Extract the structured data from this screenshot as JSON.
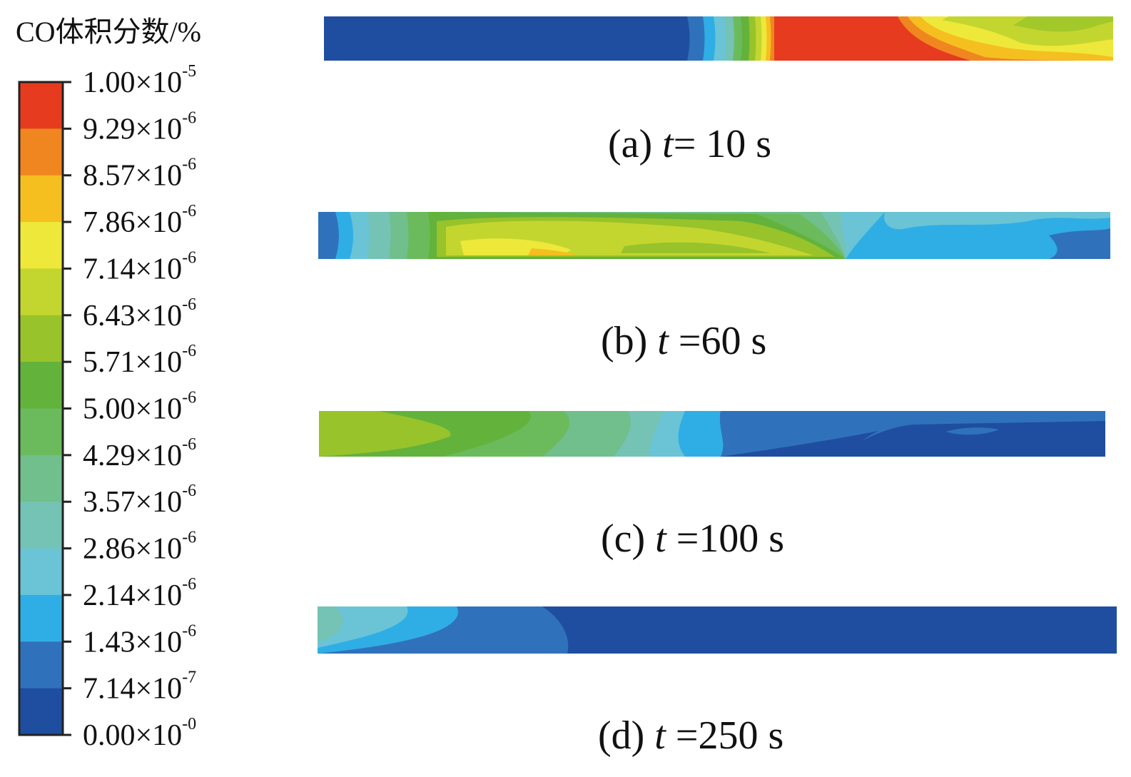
{
  "colorbar": {
    "title": "CO体积分数/%",
    "ticks": [
      {
        "mantissa": "1.00×10",
        "exp": "-5"
      },
      {
        "mantissa": "9.29×10",
        "exp": "-6"
      },
      {
        "mantissa": "8.57×10",
        "exp": "-6"
      },
      {
        "mantissa": "7.86×10",
        "exp": "-6"
      },
      {
        "mantissa": "7.14×10",
        "exp": "-6"
      },
      {
        "mantissa": "6.43×10",
        "exp": "-6"
      },
      {
        "mantissa": "5.71×10",
        "exp": "-6"
      },
      {
        "mantissa": "5.00×10",
        "exp": "-6"
      },
      {
        "mantissa": "4.29×10",
        "exp": "-6"
      },
      {
        "mantissa": "3.57×10",
        "exp": "-6"
      },
      {
        "mantissa": "2.86×10",
        "exp": "-6"
      },
      {
        "mantissa": "2.14×10",
        "exp": "-6"
      },
      {
        "mantissa": "1.43×10",
        "exp": "-6"
      },
      {
        "mantissa": "7.14×10",
        "exp": "-7"
      },
      {
        "mantissa": "0.00×10",
        "exp": "-0"
      }
    ],
    "colors_top_to_bottom": [
      "#e63b1f",
      "#f0861f",
      "#f5bf20",
      "#eee83a",
      "#c3d62f",
      "#98c32a",
      "#62b23c",
      "#6bbb5c",
      "#70bf8c",
      "#74c3b4",
      "#6ac4d6",
      "#2faee5",
      "#2f72bb",
      "#1f4ea0"
    ]
  },
  "panels": [
    {
      "id": "a",
      "label": "(a) ",
      "t": "t",
      "rest": "= 10 s"
    },
    {
      "id": "b",
      "label": "(b) ",
      "t": "t",
      "rest": " =60 s"
    },
    {
      "id": "c",
      "label": "(c) ",
      "t": "t",
      "rest": " =100 s"
    },
    {
      "id": "d",
      "label": "(d) ",
      "t": "t",
      "rest": " =250 s"
    }
  ]
}
